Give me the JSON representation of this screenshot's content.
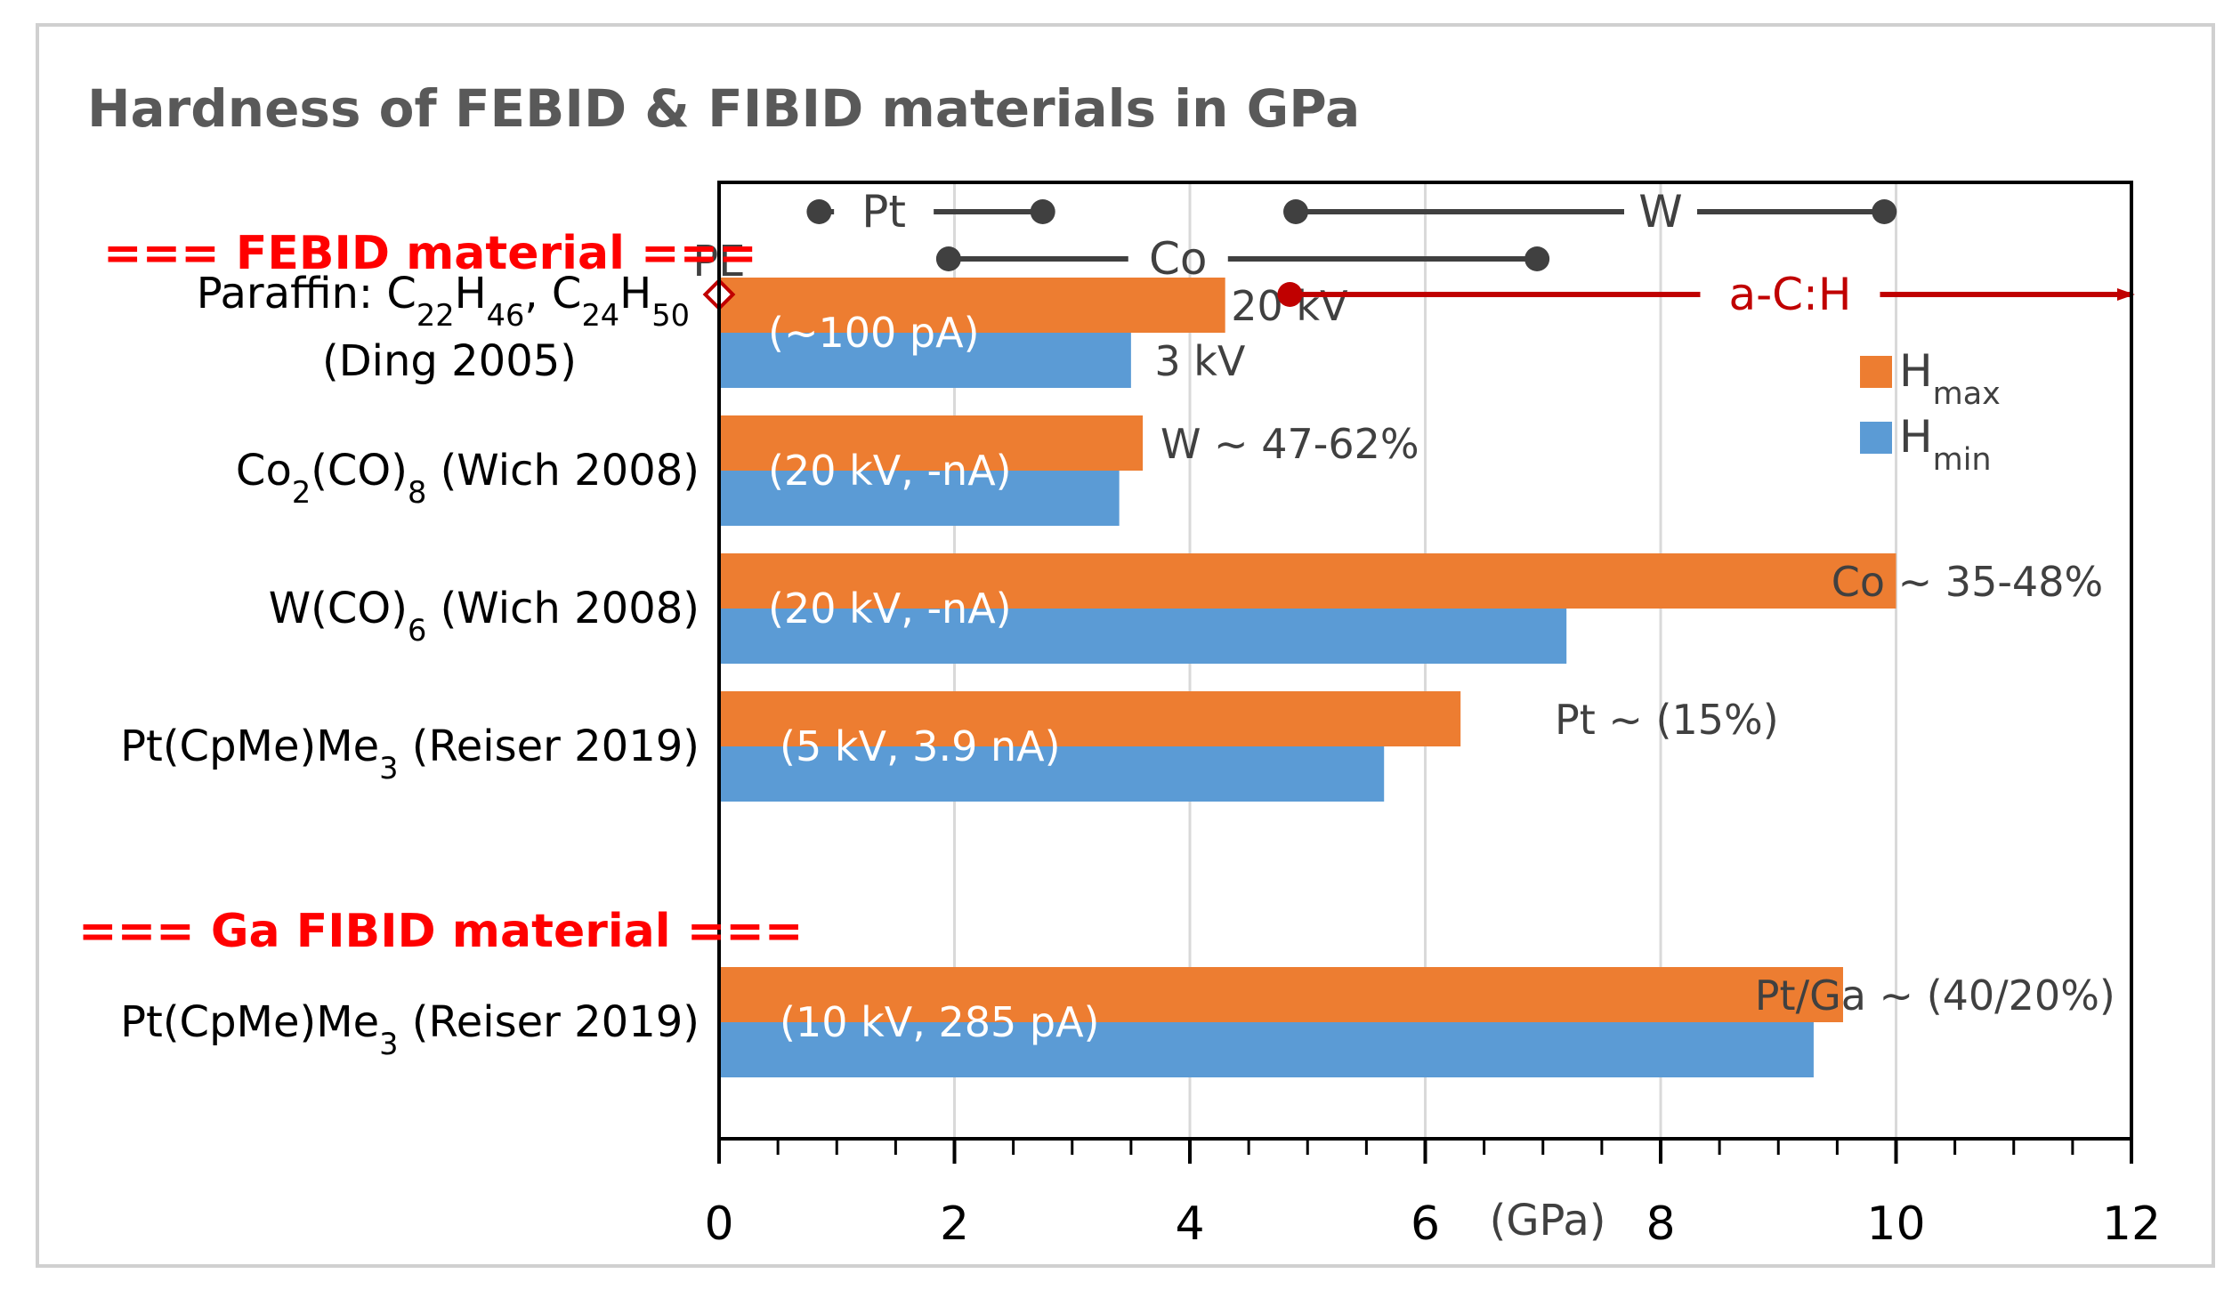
{
  "chart_data": {
    "type": "bar",
    "orientation": "horizontal",
    "title": "Hardness of FEBID & FIBID materials in GPa",
    "xlabel": "(GPa)",
    "xlim": [
      0,
      12
    ],
    "xticks": [
      "0",
      "2",
      "4",
      "6",
      "8",
      "10",
      "12"
    ],
    "grid": true,
    "legend_position": "top-right",
    "sections": [
      {
        "label": "=== FEBID material ===",
        "before_category": 0
      },
      {
        "label": "=== Ga FIBID material ===",
        "before_category": 4
      }
    ],
    "categories": [
      {
        "base": "Paraffin: C",
        "s1": "22",
        "m1": "H",
        "s2": "46",
        "m2": ", C",
        "s3": "24",
        "m3": "H",
        "s4": "50",
        "line2": "(Ding 2005)"
      },
      {
        "base": "Co",
        "s1": "2",
        "m1": "(CO)",
        "s2": "8",
        "m2": " (Wich 2008)"
      },
      {
        "base": "W(CO)",
        "s1": "6",
        "m1": " (Wich 2008)"
      },
      {
        "base": "Pt(CpMe)Me",
        "s1": "3",
        "m1": " (Reiser 2019)"
      },
      {
        "base": "Pt(CpMe)Me",
        "s1": "3",
        "m1": " (Reiser 2019)"
      }
    ],
    "slots": [
      0,
      1,
      2,
      3,
      5
    ],
    "series": [
      {
        "name": "H",
        "sub": "max",
        "color": "#ED7D31",
        "values": [
          4.3,
          3.6,
          10.0,
          6.3,
          9.55
        ]
      },
      {
        "name": "H",
        "sub": "min",
        "color": "#5B9BD5",
        "values": [
          3.5,
          3.4,
          7.2,
          5.65,
          9.3
        ]
      }
    ],
    "bar_labels": [
      "(~100 pA)",
      "(20 kV, -nA)",
      "(20 kV, -nA)",
      "(5 kV, 3.9 nA)",
      "(10 kV, 285 pA)"
    ],
    "annotations": [
      {
        "text": "20 kV",
        "category": 0,
        "series": 0,
        "x": 4.35
      },
      {
        "text": "3 kV",
        "category": 0,
        "series": 1,
        "x": 3.7
      },
      {
        "text": "W ~ 47-62%",
        "category": 1,
        "series": 0,
        "x": 3.75
      },
      {
        "text": "Co ~ 35-48%",
        "category": 2,
        "series": 0,
        "x": 9.45
      },
      {
        "text": "Pt ~ (15%)",
        "category": 3,
        "series": 0,
        "x": 7.1
      },
      {
        "text": "Pt/Ga ~ (40/20%)",
        "category": 4,
        "series": 0,
        "x": 8.8
      }
    ],
    "pe_marker": {
      "label": "PE",
      "x": 0
    },
    "ranges": [
      {
        "label": "Pt",
        "from": 0.85,
        "to": 2.75,
        "row": 0,
        "color": "#404040",
        "label_x": 1.4
      },
      {
        "label": "W",
        "from": 4.9,
        "to": 9.9,
        "row": 0,
        "color": "#404040",
        "label_x": 8.0
      },
      {
        "label": "Co",
        "from": 1.95,
        "to": 6.95,
        "row": 1,
        "color": "#404040",
        "label_x": 3.9
      },
      {
        "label": "a-C:H",
        "from": 4.85,
        "to": 12.0,
        "row": 2,
        "color": "#C00000",
        "label_x": 9.1,
        "arrow": true
      }
    ]
  }
}
